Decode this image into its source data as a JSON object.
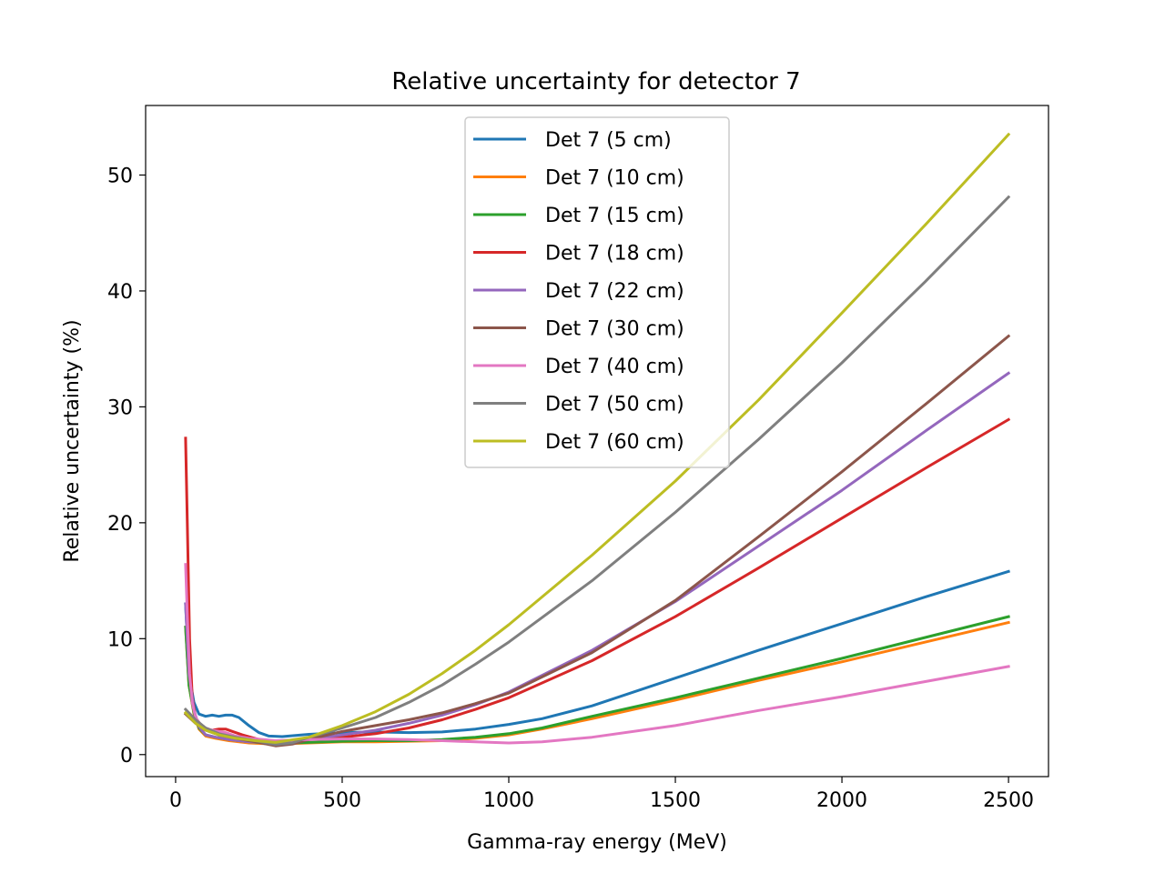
{
  "chart_data": {
    "type": "line",
    "title": "Relative uncertainty for detector 7",
    "xlabel": "Gamma-ray energy (MeV)",
    "ylabel": "Relative uncertainty (%)",
    "xlim": [
      -90,
      2620
    ],
    "ylim": [
      -1.9,
      56.0
    ],
    "xticks": [
      0,
      500,
      1000,
      1500,
      2000,
      2500
    ],
    "yticks": [
      0,
      10,
      20,
      30,
      40,
      50
    ],
    "grid": false,
    "legend_position": "top-center",
    "series": [
      {
        "name": "Det 7 (5 cm)",
        "color": "#1f77b4",
        "points": [
          [
            30,
            13
          ],
          [
            40,
            7
          ],
          [
            55,
            4.5
          ],
          [
            70,
            3.5
          ],
          [
            90,
            3.3
          ],
          [
            110,
            3.4
          ],
          [
            130,
            3.3
          ],
          [
            150,
            3.4
          ],
          [
            170,
            3.4
          ],
          [
            190,
            3.2
          ],
          [
            220,
            2.5
          ],
          [
            250,
            1.9
          ],
          [
            280,
            1.6
          ],
          [
            320,
            1.55
          ],
          [
            400,
            1.75
          ],
          [
            500,
            1.9
          ],
          [
            600,
            1.95
          ],
          [
            700,
            1.9
          ],
          [
            800,
            1.95
          ],
          [
            900,
            2.2
          ],
          [
            1000,
            2.6
          ],
          [
            1100,
            3.1
          ],
          [
            1250,
            4.2
          ],
          [
            1500,
            6.6
          ],
          [
            1750,
            9
          ],
          [
            2000,
            11.3
          ],
          [
            2250,
            13.6
          ],
          [
            2500,
            15.8
          ]
        ]
      },
      {
        "name": "Det 7 (10 cm)",
        "color": "#ff7f0e",
        "points": [
          [
            30,
            11
          ],
          [
            40,
            6
          ],
          [
            55,
            3.5
          ],
          [
            70,
            2.2
          ],
          [
            90,
            1.6
          ],
          [
            120,
            1.4
          ],
          [
            160,
            1.2
          ],
          [
            220,
            1.0
          ],
          [
            300,
            0.9
          ],
          [
            400,
            1.0
          ],
          [
            500,
            1.1
          ],
          [
            600,
            1.1
          ],
          [
            700,
            1.15
          ],
          [
            800,
            1.2
          ],
          [
            900,
            1.4
          ],
          [
            1000,
            1.7
          ],
          [
            1100,
            2.2
          ],
          [
            1250,
            3.1
          ],
          [
            1500,
            4.7
          ],
          [
            1750,
            6.4
          ],
          [
            2000,
            8
          ],
          [
            2250,
            9.7
          ],
          [
            2500,
            11.4
          ]
        ]
      },
      {
        "name": "Det 7 (15 cm)",
        "color": "#2ca02c",
        "points": [
          [
            30,
            11
          ],
          [
            40,
            6
          ],
          [
            55,
            3.6
          ],
          [
            70,
            2.3
          ],
          [
            90,
            1.7
          ],
          [
            120,
            1.5
          ],
          [
            160,
            1.3
          ],
          [
            220,
            1.1
          ],
          [
            300,
            0.95
          ],
          [
            400,
            1.05
          ],
          [
            500,
            1.15
          ],
          [
            600,
            1.2
          ],
          [
            700,
            1.2
          ],
          [
            800,
            1.3
          ],
          [
            900,
            1.5
          ],
          [
            1000,
            1.8
          ],
          [
            1100,
            2.3
          ],
          [
            1250,
            3.3
          ],
          [
            1500,
            4.9
          ],
          [
            1750,
            6.6
          ],
          [
            2000,
            8.3
          ],
          [
            2250,
            10.1
          ],
          [
            2500,
            11.9
          ]
        ]
      },
      {
        "name": "Det 7 (18 cm)",
        "color": "#d62728",
        "points": [
          [
            30,
            27.3
          ],
          [
            35,
            20
          ],
          [
            42,
            10
          ],
          [
            50,
            5
          ],
          [
            60,
            3.2
          ],
          [
            75,
            2.5
          ],
          [
            90,
            2.2
          ],
          [
            110,
            2.1
          ],
          [
            130,
            2.2
          ],
          [
            150,
            2.2
          ],
          [
            170,
            2.0
          ],
          [
            200,
            1.7
          ],
          [
            250,
            1.3
          ],
          [
            300,
            1.1
          ],
          [
            400,
            1.3
          ],
          [
            500,
            1.5
          ],
          [
            600,
            1.8
          ],
          [
            700,
            2.3
          ],
          [
            800,
            3.0
          ],
          [
            900,
            3.9
          ],
          [
            1000,
            4.9
          ],
          [
            1250,
            8.1
          ],
          [
            1500,
            11.9
          ],
          [
            1750,
            16.1
          ],
          [
            2000,
            20.4
          ],
          [
            2250,
            24.7
          ],
          [
            2500,
            28.9
          ]
        ]
      },
      {
        "name": "Det 7 (22 cm)",
        "color": "#9467bd",
        "points": [
          [
            30,
            13
          ],
          [
            40,
            7
          ],
          [
            55,
            3.8
          ],
          [
            70,
            2.4
          ],
          [
            90,
            1.7
          ],
          [
            120,
            1.5
          ],
          [
            160,
            1.3
          ],
          [
            220,
            1.1
          ],
          [
            300,
            1.0
          ],
          [
            400,
            1.3
          ],
          [
            500,
            1.7
          ],
          [
            600,
            2.1
          ],
          [
            700,
            2.7
          ],
          [
            800,
            3.4
          ],
          [
            900,
            4.3
          ],
          [
            1000,
            5.4
          ],
          [
            1250,
            9.0
          ],
          [
            1500,
            13.2
          ],
          [
            1750,
            18.0
          ],
          [
            2000,
            22.8
          ],
          [
            2250,
            27.9
          ],
          [
            2500,
            32.9
          ]
        ]
      },
      {
        "name": "Det 7 (30 cm)",
        "color": "#8c564b",
        "points": [
          [
            30,
            3.5
          ],
          [
            60,
            2.7
          ],
          [
            90,
            2.1
          ],
          [
            130,
            1.7
          ],
          [
            180,
            1.4
          ],
          [
            240,
            1.1
          ],
          [
            300,
            0.75
          ],
          [
            350,
            0.9
          ],
          [
            400,
            1.3
          ],
          [
            500,
            2.0
          ],
          [
            600,
            2.5
          ],
          [
            700,
            3.0
          ],
          [
            800,
            3.6
          ],
          [
            900,
            4.4
          ],
          [
            1000,
            5.3
          ],
          [
            1250,
            8.8
          ],
          [
            1500,
            13.3
          ],
          [
            1750,
            18.8
          ],
          [
            2000,
            24.4
          ],
          [
            2250,
            30.2
          ],
          [
            2500,
            36.1
          ]
        ]
      },
      {
        "name": "Det 7 (40 cm)",
        "color": "#e377c2",
        "points": [
          [
            30,
            16.4
          ],
          [
            35,
            12
          ],
          [
            42,
            7
          ],
          [
            50,
            4.5
          ],
          [
            60,
            3.2
          ],
          [
            75,
            2.6
          ],
          [
            90,
            2.3
          ],
          [
            110,
            2.1
          ],
          [
            130,
            2.0
          ],
          [
            150,
            1.9
          ],
          [
            180,
            1.6
          ],
          [
            220,
            1.4
          ],
          [
            300,
            1.2
          ],
          [
            400,
            1.3
          ],
          [
            500,
            1.35
          ],
          [
            600,
            1.35
          ],
          [
            700,
            1.3
          ],
          [
            800,
            1.2
          ],
          [
            900,
            1.1
          ],
          [
            1000,
            1.0
          ],
          [
            1100,
            1.1
          ],
          [
            1250,
            1.5
          ],
          [
            1500,
            2.5
          ],
          [
            1750,
            3.8
          ],
          [
            2000,
            5.0
          ],
          [
            2250,
            6.3
          ],
          [
            2500,
            7.6
          ]
        ]
      },
      {
        "name": "Det 7 (50 cm)",
        "color": "#7f7f7f",
        "points": [
          [
            30,
            3.9
          ],
          [
            60,
            3.0
          ],
          [
            90,
            2.3
          ],
          [
            130,
            1.8
          ],
          [
            180,
            1.5
          ],
          [
            240,
            1.2
          ],
          [
            300,
            0.85
          ],
          [
            350,
            1.0
          ],
          [
            400,
            1.5
          ],
          [
            500,
            2.3
          ],
          [
            600,
            3.2
          ],
          [
            700,
            4.5
          ],
          [
            800,
            6.0
          ],
          [
            900,
            7.8
          ],
          [
            1000,
            9.7
          ],
          [
            1250,
            15.0
          ],
          [
            1500,
            20.9
          ],
          [
            1750,
            27.2
          ],
          [
            2000,
            33.8
          ],
          [
            2250,
            40.8
          ],
          [
            2500,
            48.1
          ]
        ]
      },
      {
        "name": "Det 7 (60 cm)",
        "color": "#bcbd22",
        "points": [
          [
            30,
            3.6
          ],
          [
            60,
            2.7
          ],
          [
            90,
            2.1
          ],
          [
            130,
            1.7
          ],
          [
            180,
            1.4
          ],
          [
            240,
            1.2
          ],
          [
            300,
            1.05
          ],
          [
            400,
            1.5
          ],
          [
            500,
            2.5
          ],
          [
            600,
            3.7
          ],
          [
            700,
            5.2
          ],
          [
            800,
            7.0
          ],
          [
            900,
            9.0
          ],
          [
            1000,
            11.2
          ],
          [
            1250,
            17.2
          ],
          [
            1500,
            23.6
          ],
          [
            1750,
            30.6
          ],
          [
            2000,
            38.1
          ],
          [
            2250,
            45.7
          ],
          [
            2500,
            53.5
          ]
        ]
      }
    ]
  }
}
